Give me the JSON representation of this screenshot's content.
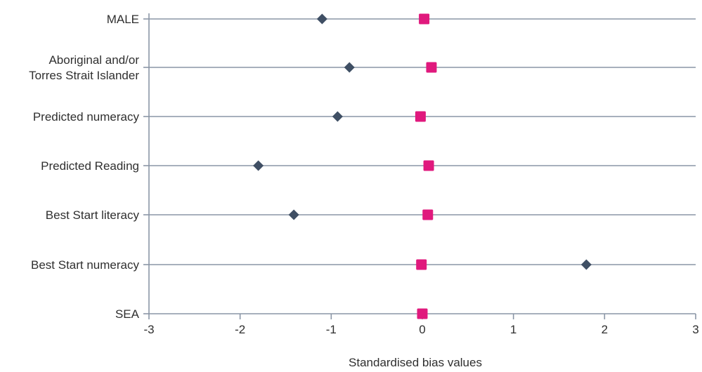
{
  "chart_data": {
    "type": "scatter",
    "title": "",
    "xlabel": "Standardised bias values",
    "ylabel": "",
    "xlim": [
      -3,
      3
    ],
    "x_ticks": [
      "-3",
      "-2",
      "-1",
      "0",
      "1",
      "2",
      "3"
    ],
    "categories": [
      [
        "MALE"
      ],
      [
        "Aboriginal and/or",
        "Torres Strait Islander"
      ],
      [
        "Predicted numeracy"
      ],
      [
        "Predicted Reading"
      ],
      [
        "Best Start literacy"
      ],
      [
        "Best Start numeracy"
      ],
      [
        "SEA"
      ]
    ],
    "series": [
      {
        "values": [
          -1.1,
          -0.8,
          -0.93,
          -1.8,
          -1.41,
          1.8,
          0.0
        ]
      },
      {
        "values": [
          0.02,
          0.1,
          -0.02,
          0.07,
          0.06,
          -0.01,
          0.0
        ]
      }
    ],
    "grid": "horizontal",
    "legend": "none"
  },
  "colors": {
    "series_0": "#3f4f64",
    "series_1": "#e0197d",
    "lines": "#8a96a6",
    "text": "#2f2f2f"
  }
}
